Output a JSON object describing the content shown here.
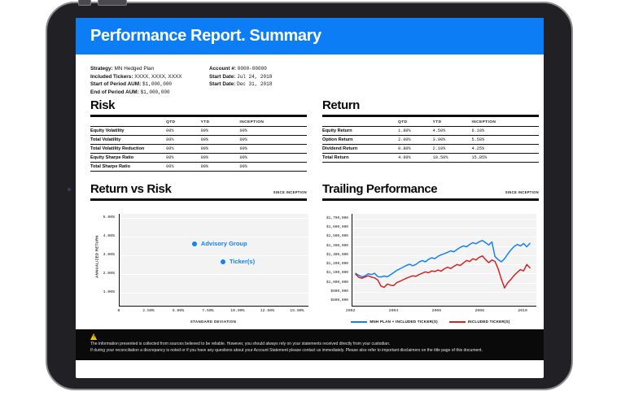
{
  "report": {
    "title": "Performance Report. Summary",
    "meta": {
      "left": [
        {
          "label": "Strategy:",
          "value": "MN Hedged Plan",
          "mono": false
        },
        {
          "label": "Included Tickers:",
          "value": "XXXX, XXXX, XXXX",
          "mono": false
        },
        {
          "label": "Start of Period AUM:",
          "value": "$1,000,000",
          "mono": true
        },
        {
          "label": "End of Period AUM:",
          "value": "$1,000,000",
          "mono": true
        }
      ],
      "right": [
        {
          "label": "Account #:",
          "value": "0000-00000",
          "mono": true
        },
        {
          "label": "Start Date:",
          "value": "Jul 24, 2018",
          "mono": true
        },
        {
          "label": "Start Date:",
          "value": "Dec 31, 2018",
          "mono": true
        }
      ]
    },
    "risk": {
      "title": "Risk",
      "columns": [
        "QTD",
        "YTD",
        "INCEPTION"
      ],
      "rows": [
        {
          "label": "Equity Volatility",
          "values": [
            "00%",
            "00%",
            "00%"
          ]
        },
        {
          "label": "Total Volatility",
          "values": [
            "00%",
            "00%",
            "00%"
          ]
        },
        {
          "label": "Total Volatility Reduction",
          "values": [
            "00%",
            "00%",
            "00%"
          ]
        },
        {
          "label": "Equity Sharpe Ratio",
          "values": [
            "00%",
            "00%",
            "00%"
          ]
        },
        {
          "label": "Total Sharpe Ratio",
          "values": [
            "00%",
            "00%",
            "00%"
          ]
        }
      ]
    },
    "return": {
      "title": "Return",
      "columns": [
        "QTD",
        "YTD",
        "INCEPTION"
      ],
      "rows": [
        {
          "label": "Equity Return",
          "values": [
            "1.80%",
            "4.50%",
            "6.10%"
          ]
        },
        {
          "label": "Option Return",
          "values": [
            "2.00%",
            "3.90%",
            "5.50%"
          ]
        },
        {
          "label": "Dividend Return",
          "values": [
            "0.80%",
            "2.10%",
            "4.25%"
          ]
        },
        {
          "label": "Total Return",
          "values": [
            "4.60%",
            "10.50%",
            "15.85%"
          ]
        }
      ]
    },
    "footer": {
      "line1": "The information presented is collected from sources believed to be reliable. However, you should always rely on your statements received directly from your custodian.",
      "line2": "If during your reconciliation a discrepancy is noted or if you have any questions about your Account Statement please contact us immediately. Please also refer to important disclaimers on the title page of this document."
    }
  },
  "colors": {
    "accent_blue": "#0d7df5",
    "chart_blue": "#1282f5",
    "chart_red": "#d92222",
    "plot_bg": "#f3f3f3",
    "footer_bg": "#0a0a0b",
    "warning_yellow": "#f6c700"
  },
  "chart_data": [
    {
      "type": "scatter",
      "title": "Return vs Risk",
      "badge": "SINCE INCEPTION",
      "xlabel": "STANDARD DEVIATION",
      "ylabel": "ANNUALIZED RETURN",
      "xlim": [
        0,
        15.9
      ],
      "ylim": [
        0.3,
        5.2
      ],
      "grid": true,
      "x_ticks": {
        "values": [
          0,
          2.5,
          5,
          7.5,
          10,
          12.5,
          15
        ],
        "labels": [
          "0",
          "2.50%",
          "5.00%",
          "7.50%",
          "10.00%",
          "12.50%",
          "15.00%"
        ]
      },
      "y_ticks": {
        "values": [
          5,
          4,
          3,
          2,
          1
        ],
        "labels": [
          "5.00%",
          "4.00%",
          "3.00%",
          "2.00%",
          "1.00%"
        ]
      },
      "points": [
        {
          "label": "Advisory Group",
          "x": 6.3,
          "y": 3.6
        },
        {
          "label": "Ticker(s)",
          "x": 8.7,
          "y": 2.65
        }
      ]
    },
    {
      "type": "line",
      "title": "Trailing Performance",
      "badge": "SINCE INCEPTION",
      "xlim": [
        2002.05,
        2010.6
      ],
      "ylim": [
        747000,
        1753000
      ],
      "grid": true,
      "legend_position": "bottom",
      "x_ticks": {
        "values": [
          2002,
          2004,
          2006,
          2008,
          2010
        ],
        "labels": [
          "2002",
          "2004",
          "2006",
          "2008",
          "2010"
        ]
      },
      "y_ticks": {
        "values": [
          1700000,
          1600000,
          1500000,
          1400000,
          1300000,
          1200000,
          1100000,
          1000000,
          900000,
          800000
        ],
        "labels": [
          "$1,700,000",
          "$1,600,000",
          "$1,500,000",
          "$1,400,000",
          "$1,300,000",
          "$1,200,000",
          "$1,100,000",
          "$1,000,000",
          "$900,000",
          "$800,000"
        ]
      },
      "series": [
        {
          "name": "MNH PLAN + INCLUDED TICKER(S)",
          "color": "#1282f5",
          "x_start": 2002.2,
          "x_end": 2010.3,
          "values": [
            1100000,
            1080000,
            1062000,
            1075000,
            1098000,
            1088000,
            1102000,
            1066000,
            1062000,
            1072000,
            1064000,
            1086000,
            1110000,
            1135000,
            1152000,
            1170000,
            1188000,
            1202000,
            1185000,
            1198000,
            1225000,
            1242000,
            1228000,
            1255000,
            1272000,
            1262000,
            1288000,
            1305000,
            1318000,
            1332000,
            1348000,
            1338000,
            1362000,
            1385000,
            1402000,
            1392000,
            1418000,
            1438000,
            1425000,
            1448000,
            1462000,
            1438000,
            1412000,
            1445000,
            1285000,
            1252000,
            1228000,
            1262000,
            1312000,
            1358000,
            1395000,
            1418000,
            1402000,
            1428000,
            1392000,
            1430000
          ]
        },
        {
          "name": "INCLUDED TICKER(S)",
          "color": "#d92222",
          "x_start": 2002.2,
          "x_end": 2010.3,
          "values": [
            1092000,
            1058000,
            1048000,
            1062000,
            1075000,
            1060000,
            1052000,
            1028000,
            962000,
            948000,
            985000,
            972000,
            968000,
            1002000,
            1015000,
            1032000,
            1048000,
            1062000,
            1075000,
            1068000,
            1088000,
            1102000,
            1118000,
            1108000,
            1128000,
            1122000,
            1138000,
            1125000,
            1152000,
            1168000,
            1155000,
            1178000,
            1198000,
            1188000,
            1215000,
            1242000,
            1232000,
            1262000,
            1248000,
            1278000,
            1292000,
            1252000,
            1218000,
            1248000,
            1232000,
            1150000,
            1038000,
            942000,
            998000,
            1035000,
            1078000,
            1112000,
            1142000,
            1128000,
            1198000,
            1162000
          ]
        }
      ]
    }
  ]
}
